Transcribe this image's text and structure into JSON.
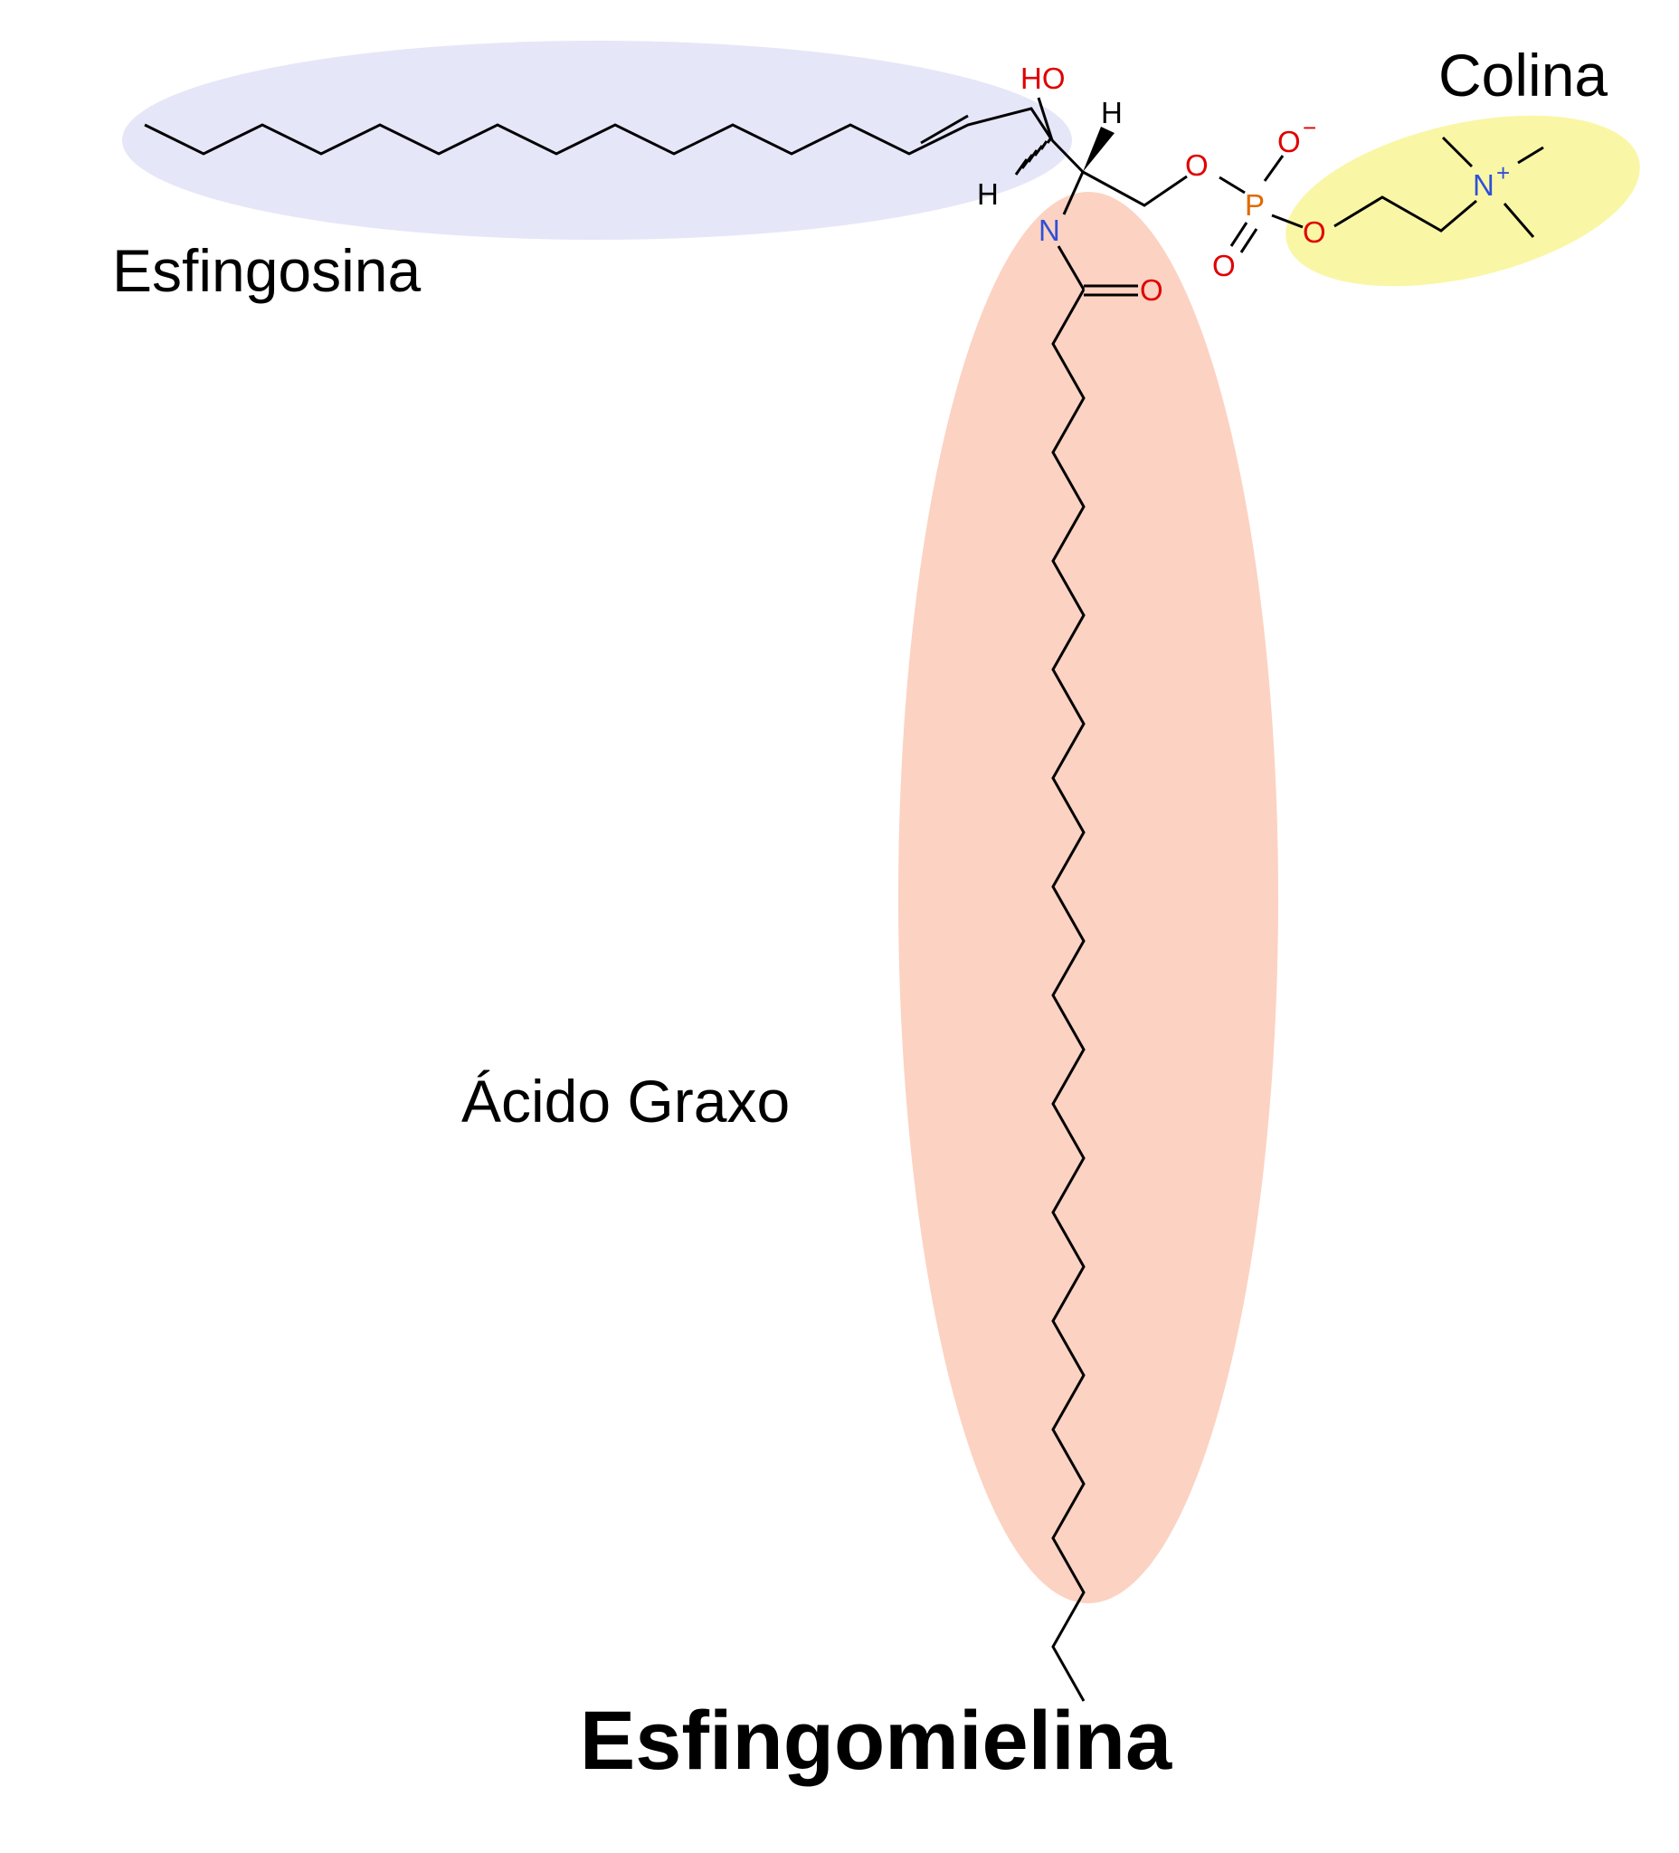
{
  "title": "Esfingomielina",
  "regions": {
    "sphingosine": {
      "label": "Esfingosina",
      "color": "#e6e6f9"
    },
    "choline": {
      "label": "Colina",
      "color": "#f9f7a6"
    },
    "fatty_acid": {
      "label": "Ácido Graxo",
      "color": "#fcd2c2"
    }
  },
  "atoms": {
    "hydroxyl": {
      "text": "HO",
      "color": "#e00000"
    },
    "hydrogen_top": {
      "text": "H",
      "color": "#000000"
    },
    "hydrogen_bottom": {
      "text": "H",
      "color": "#000000"
    },
    "nitrogen_amide": {
      "text": "N",
      "color": "#3050d8"
    },
    "oxygen_ester": {
      "text": "O",
      "color": "#e00000"
    },
    "oxygen_anion": {
      "text": "O",
      "charge": "−",
      "color": "#e00000"
    },
    "phosphorus": {
      "text": "P",
      "color": "#e06a00"
    },
    "oxygen_double": {
      "text": "O",
      "color": "#e00000"
    },
    "oxygen_choline": {
      "text": "O",
      "color": "#e00000"
    },
    "nitrogen_choline": {
      "text": "N",
      "charge": "+",
      "color": "#3050d8"
    },
    "oxygen_carbonyl": {
      "text": "O",
      "color": "#e00000"
    }
  }
}
